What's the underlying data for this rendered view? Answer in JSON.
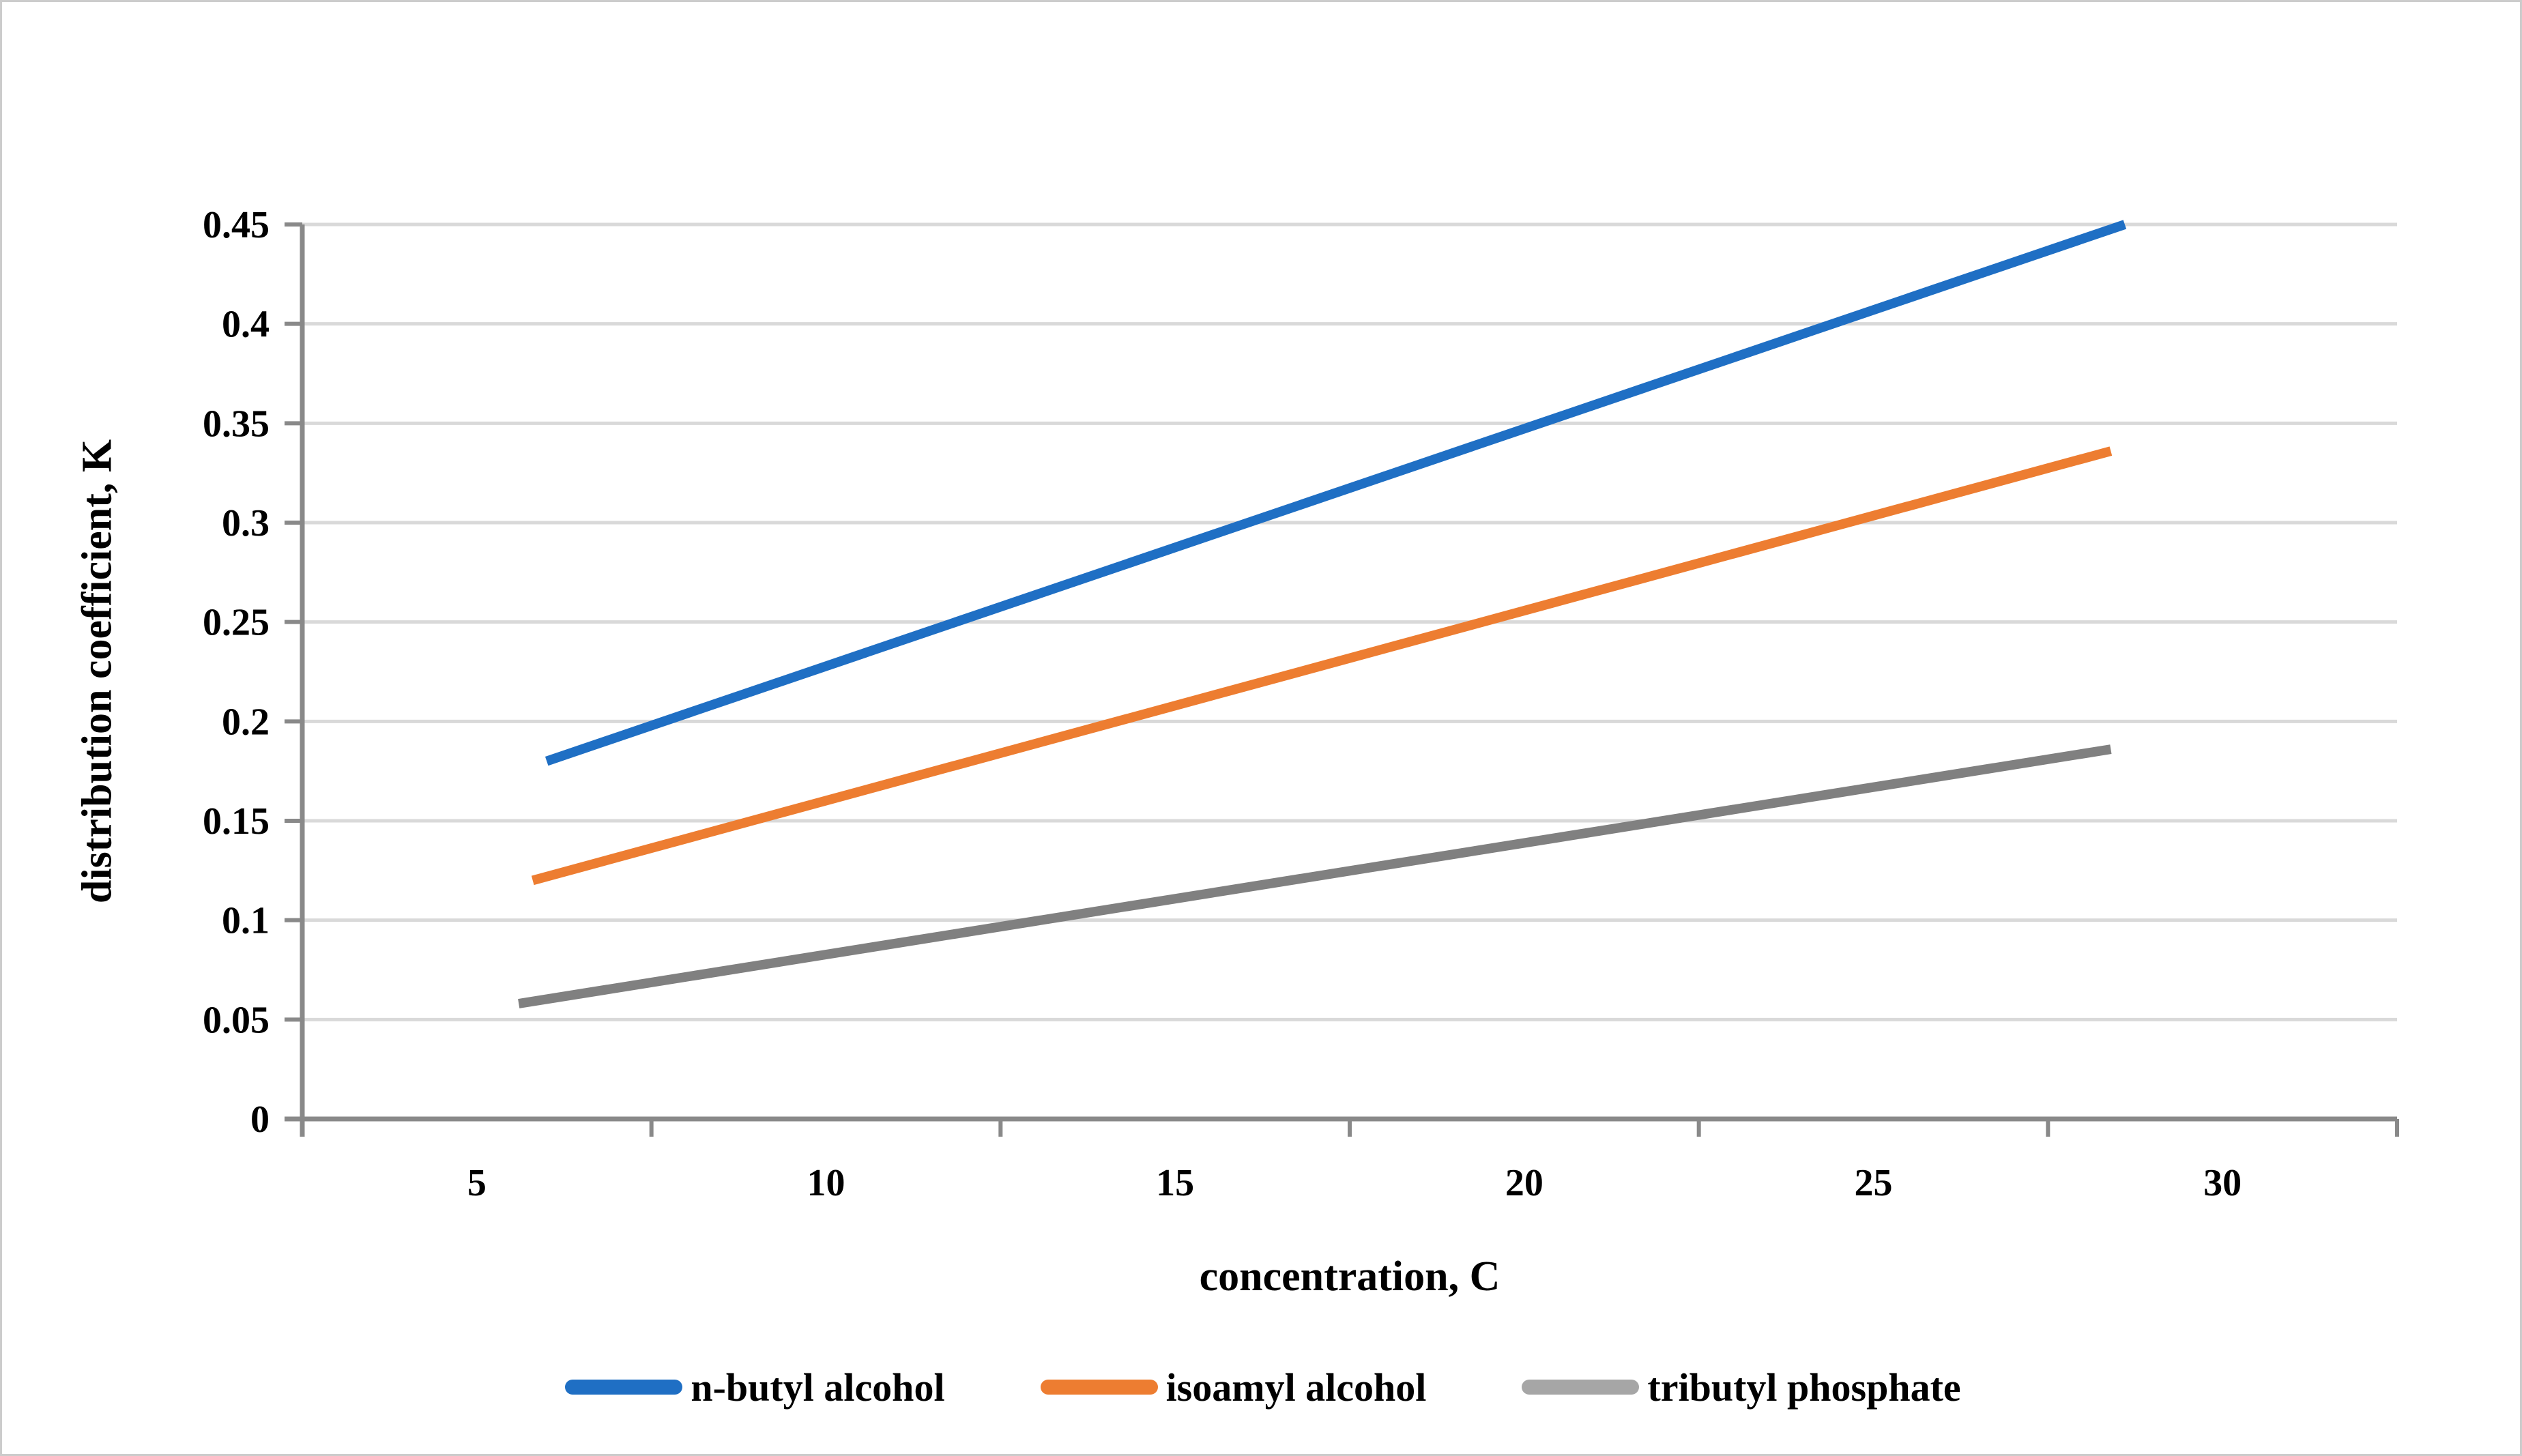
{
  "chart_data": {
    "type": "line",
    "title": "",
    "xlabel": "concentration, C",
    "ylabel": "distribution coefficient, K",
    "x_axis": {
      "tick_labels": [
        "5",
        "10",
        "15",
        "20",
        "25",
        "30"
      ],
      "labels_between_ticks": true,
      "num_bands": 6
    },
    "y_axis": {
      "tick_labels": [
        "0",
        "0.05",
        "0.1",
        "0.15",
        "0.2",
        "0.25",
        "0.3",
        "0.35",
        "0.4",
        "0.45"
      ],
      "min": 0,
      "max": 0.45,
      "major_unit": 0.05
    },
    "grid": "horizontal",
    "legend_position": "bottom",
    "series": [
      {
        "name": "n-butyl alcohol",
        "color": "#1F6FC4",
        "points": [
          [
            6.0,
            0.18
          ],
          [
            28.6,
            0.45
          ]
        ]
      },
      {
        "name": "isoamyl alcohol",
        "color": "#ED7D31",
        "points": [
          [
            5.8,
            0.12
          ],
          [
            28.4,
            0.336
          ]
        ]
      },
      {
        "name": "tributyl phosphate",
        "color": "#808080",
        "legend_color": "#A6A6A6",
        "points": [
          [
            5.6,
            0.058
          ],
          [
            28.4,
            0.186
          ]
        ]
      }
    ]
  },
  "colors": {
    "gridline": "#D9D9D9",
    "axis": "#898989",
    "text": "#000000",
    "background": "#FFFFFF",
    "border": "#CCCCCC"
  }
}
